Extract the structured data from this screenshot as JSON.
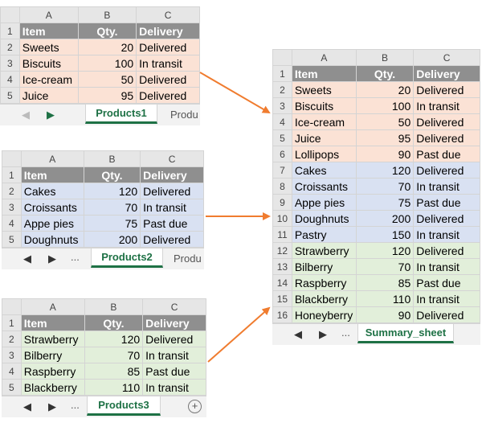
{
  "columns": [
    "A",
    "B",
    "C"
  ],
  "products1": {
    "tab_label": "Products1",
    "next_tab_partial": "Produ",
    "rows": [
      {
        "n": "1",
        "item": "Item",
        "qty": "Qty.",
        "delivery": "Delivery"
      },
      {
        "n": "2",
        "item": "Sweets",
        "qty": "20",
        "delivery": "Delivered"
      },
      {
        "n": "3",
        "item": "Biscuits",
        "qty": "100",
        "delivery": "In transit"
      },
      {
        "n": "4",
        "item": "Ice-cream",
        "qty": "50",
        "delivery": "Delivered"
      },
      {
        "n": "5",
        "item": "Juice",
        "qty": "95",
        "delivery": "Delivered"
      }
    ]
  },
  "products2": {
    "tab_label": "Products2",
    "next_tab_partial": "Produ",
    "ellipsis": "...",
    "rows": [
      {
        "n": "1",
        "item": "Item",
        "qty": "Qty.",
        "delivery": "Delivery"
      },
      {
        "n": "2",
        "item": "Cakes",
        "qty": "120",
        "delivery": "Delivered"
      },
      {
        "n": "3",
        "item": "Croissants",
        "qty": "70",
        "delivery": "In transit"
      },
      {
        "n": "4",
        "item": "Appe pies",
        "qty": "75",
        "delivery": "Past due"
      },
      {
        "n": "5",
        "item": "Doughnuts",
        "qty": "200",
        "delivery": "Delivered"
      }
    ]
  },
  "products3": {
    "tab_label": "Products3",
    "ellipsis": "...",
    "add_sheet": "+",
    "rows": [
      {
        "n": "1",
        "item": "Item",
        "qty": "Qty.",
        "delivery": "Delivery"
      },
      {
        "n": "2",
        "item": "Strawberry",
        "qty": "120",
        "delivery": "Delivered"
      },
      {
        "n": "3",
        "item": "Bilberry",
        "qty": "70",
        "delivery": "In transit"
      },
      {
        "n": "4",
        "item": "Raspberry",
        "qty": "85",
        "delivery": "Past due"
      },
      {
        "n": "5",
        "item": "Blackberry",
        "qty": "110",
        "delivery": "In transit"
      }
    ]
  },
  "summary": {
    "tab_label": "Summary_sheet",
    "ellipsis": "...",
    "rows": [
      {
        "n": "1",
        "item": "Item",
        "qty": "Qty.",
        "delivery": "Delivery",
        "band": "hdr"
      },
      {
        "n": "2",
        "item": "Sweets",
        "qty": "20",
        "delivery": "Delivered",
        "band": "orange"
      },
      {
        "n": "3",
        "item": "Biscuits",
        "qty": "100",
        "delivery": "In transit",
        "band": "orange"
      },
      {
        "n": "4",
        "item": "Ice-cream",
        "qty": "50",
        "delivery": "Delivered",
        "band": "orange"
      },
      {
        "n": "5",
        "item": "Juice",
        "qty": "95",
        "delivery": "Delivered",
        "band": "orange"
      },
      {
        "n": "6",
        "item": "Lollipops",
        "qty": "90",
        "delivery": "Past due",
        "band": "orange"
      },
      {
        "n": "7",
        "item": "Cakes",
        "qty": "120",
        "delivery": "Delivered",
        "band": "blue"
      },
      {
        "n": "8",
        "item": "Croissants",
        "qty": "70",
        "delivery": "In transit",
        "band": "blue"
      },
      {
        "n": "9",
        "item": "Appe pies",
        "qty": "75",
        "delivery": "Past due",
        "band": "blue"
      },
      {
        "n": "10",
        "item": "Doughnuts",
        "qty": "200",
        "delivery": "Delivered",
        "band": "blue"
      },
      {
        "n": "11",
        "item": "Pastry",
        "qty": "150",
        "delivery": "In transit",
        "band": "blue"
      },
      {
        "n": "12",
        "item": "Strawberry",
        "qty": "120",
        "delivery": "Delivered",
        "band": "green"
      },
      {
        "n": "13",
        "item": "Bilberry",
        "qty": "70",
        "delivery": "In transit",
        "band": "green"
      },
      {
        "n": "14",
        "item": "Raspberry",
        "qty": "85",
        "delivery": "Past due",
        "band": "green"
      },
      {
        "n": "15",
        "item": "Blackberry",
        "qty": "110",
        "delivery": "In transit",
        "band": "green"
      },
      {
        "n": "16",
        "item": "Honeyberry",
        "qty": "90",
        "delivery": "Delivered",
        "band": "green"
      }
    ]
  },
  "colors": {
    "accent_green": "#1e7145",
    "arrow": "#f07c2f",
    "header_gray": "#8f8f8f",
    "orange_band": "#fbe2d5",
    "blue_band": "#d9e1f2",
    "green_band": "#e2efda"
  },
  "icons": {
    "scroll_left": "triangle-left-icon",
    "scroll_right": "triangle-right-icon",
    "add_sheet": "plus-circle-icon",
    "arrow": "arrow-right-icon"
  }
}
